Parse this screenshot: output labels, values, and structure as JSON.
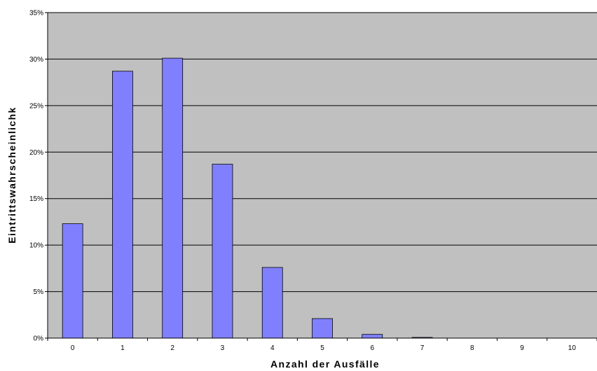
{
  "chart_data": {
    "type": "bar",
    "categories": [
      "0",
      "1",
      "2",
      "3",
      "4",
      "5",
      "6",
      "7",
      "8",
      "9",
      "10"
    ],
    "values": [
      12.3,
      28.7,
      30.1,
      18.7,
      7.6,
      2.1,
      0.4,
      0.05,
      0,
      0,
      0
    ],
    "xlabel": "Anzahl der Ausfälle",
    "ylabel": "Eintrittswahrscheinlichk",
    "ylim": [
      0,
      35
    ],
    "yticks": [
      "0%",
      "5%",
      "10%",
      "15%",
      "20%",
      "25%",
      "30%",
      "35%"
    ],
    "grid": true,
    "colors": {
      "plot_background": "#c0c0c0",
      "bar_fill": "#8080ff",
      "bar_stroke": "#000000",
      "gridline": "#000000"
    }
  }
}
